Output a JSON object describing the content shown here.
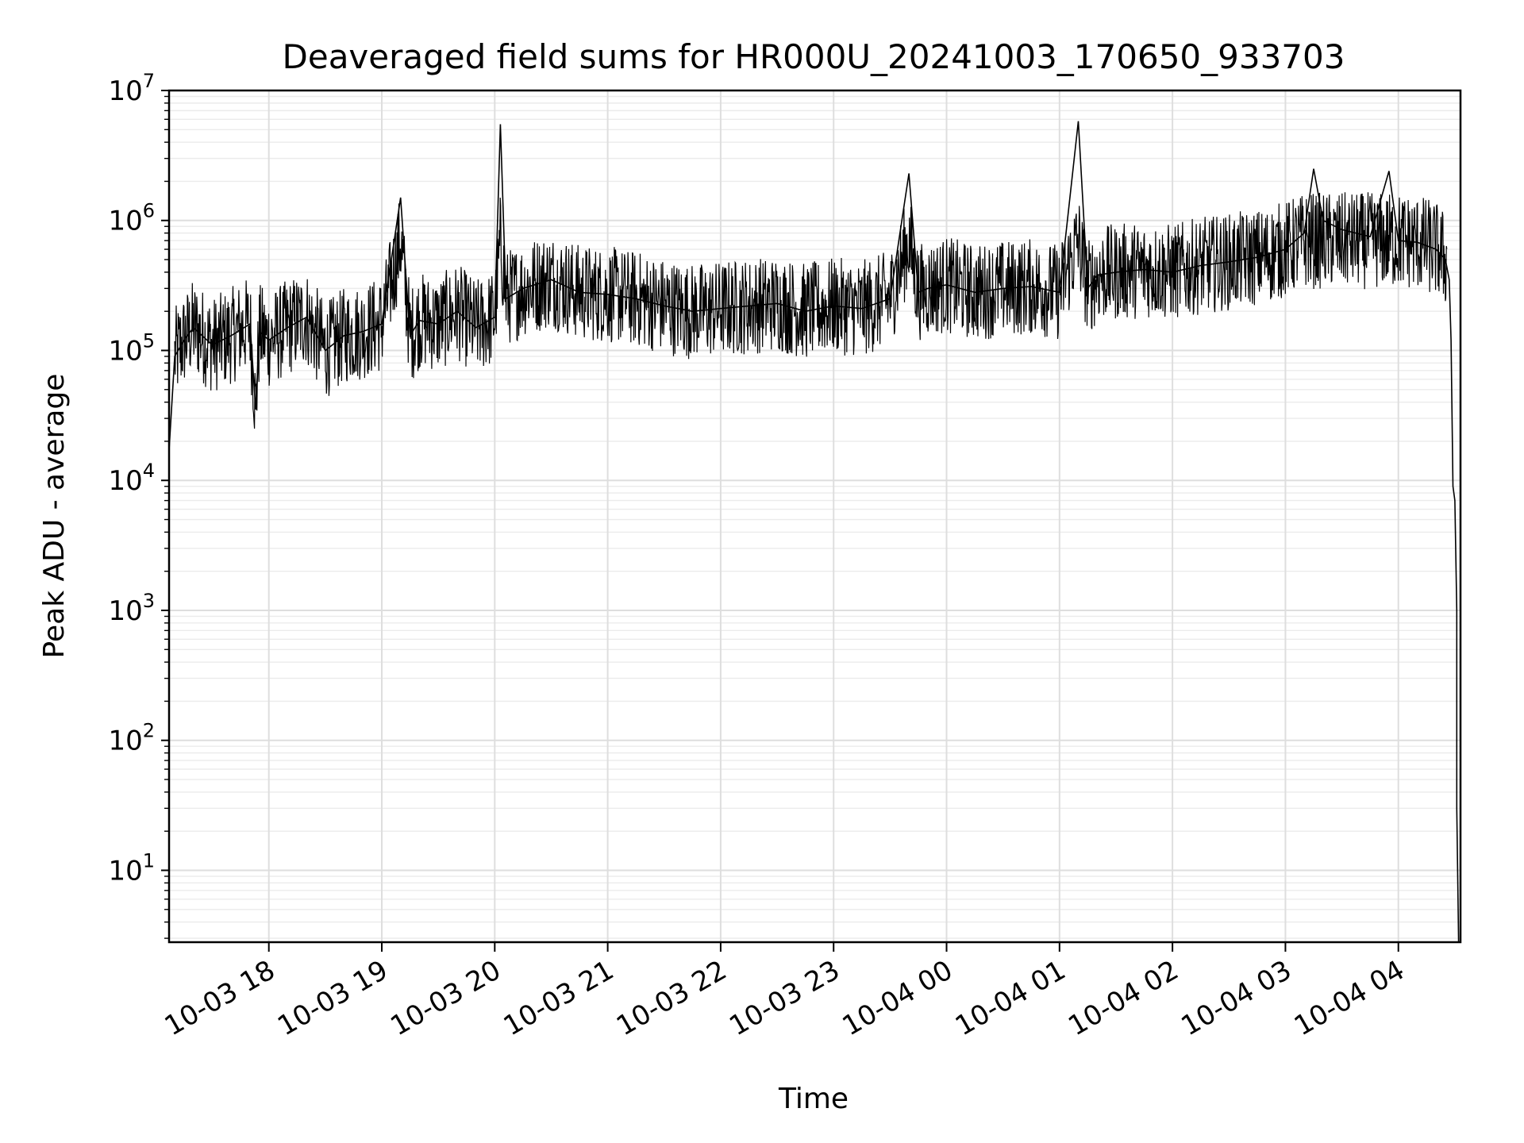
{
  "chart_data": {
    "type": "line",
    "title": "Deaveraged field sums for HR000U_20241003_170650_933703",
    "xlabel": "Time",
    "ylabel": "Peak ADU - average",
    "yscale": "log",
    "ylim": [
      2.8,
      10000000
    ],
    "xlim": [
      "2024-10-03 17:07",
      "2024-10-04 04:33"
    ],
    "grid": "on (major and minor)",
    "series_color": "#000000",
    "x_ticks": [
      "10-03 18",
      "10-03 19",
      "10-03 20",
      "10-03 21",
      "10-03 22",
      "10-03 23",
      "10-04 00",
      "10-04 01",
      "10-04 02",
      "10-04 03",
      "10-04 04"
    ],
    "y_ticks": [
      {
        "base": "10",
        "exp": "1"
      },
      {
        "base": "10",
        "exp": "2"
      },
      {
        "base": "10",
        "exp": "3"
      },
      {
        "base": "10",
        "exp": "4"
      },
      {
        "base": "10",
        "exp": "5"
      },
      {
        "base": "10",
        "exp": "6"
      },
      {
        "base": "10",
        "exp": "7"
      }
    ],
    "series": [
      {
        "color": "#000000",
        "x": [
          "2024-10-03 17:07",
          "2024-10-03 17:08",
          "2024-10-03 17:10",
          "2024-10-03 17:15",
          "2024-10-03 17:20",
          "2024-10-03 17:30",
          "2024-10-03 17:40",
          "2024-10-03 17:50",
          "2024-10-03 17:53",
          "2024-10-03 17:55",
          "2024-10-03 18:00",
          "2024-10-03 18:10",
          "2024-10-03 18:20",
          "2024-10-03 18:30",
          "2024-10-03 18:40",
          "2024-10-03 18:50",
          "2024-10-03 19:00",
          "2024-10-03 19:10",
          "2024-10-03 19:15",
          "2024-10-03 19:20",
          "2024-10-03 19:30",
          "2024-10-03 19:40",
          "2024-10-03 19:50",
          "2024-10-03 20:00",
          "2024-10-03 20:03",
          "2024-10-03 20:06",
          "2024-10-03 20:15",
          "2024-10-03 20:30",
          "2024-10-03 20:45",
          "2024-10-03 21:00",
          "2024-10-03 21:15",
          "2024-10-03 21:30",
          "2024-10-03 21:45",
          "2024-10-03 22:00",
          "2024-10-03 22:15",
          "2024-10-03 22:30",
          "2024-10-03 22:45",
          "2024-10-03 23:00",
          "2024-10-03 23:15",
          "2024-10-03 23:30",
          "2024-10-03 23:40",
          "2024-10-03 23:45",
          "2024-10-03 23:50",
          "2024-10-04 00:00",
          "2024-10-04 00:15",
          "2024-10-04 00:30",
          "2024-10-04 00:45",
          "2024-10-04 01:00",
          "2024-10-04 01:10",
          "2024-10-04 01:15",
          "2024-10-04 01:20",
          "2024-10-04 01:30",
          "2024-10-04 01:45",
          "2024-10-04 02:00",
          "2024-10-04 02:15",
          "2024-10-04 02:30",
          "2024-10-04 02:45",
          "2024-10-04 03:00",
          "2024-10-04 03:10",
          "2024-10-04 03:15",
          "2024-10-04 03:20",
          "2024-10-04 03:30",
          "2024-10-04 03:45",
          "2024-10-04 03:55",
          "2024-10-04 04:00",
          "2024-10-04 04:10",
          "2024-10-04 04:20",
          "2024-10-04 04:25",
          "2024-10-04 04:27",
          "2024-10-04 04:28",
          "2024-10-04 04:29",
          "2024-10-04 04:30",
          "2024-10-04 04:31",
          "2024-10-04 04:31",
          "2024-10-04 04:32"
        ],
        "y": [
          17000,
          30000,
          90000,
          120000,
          150000,
          110000,
          130000,
          160000,
          35000,
          140000,
          120000,
          150000,
          180000,
          100000,
          130000,
          140000,
          160000,
          1500000,
          130000,
          170000,
          160000,
          200000,
          150000,
          180000,
          5500000,
          250000,
          300000,
          350000,
          280000,
          270000,
          250000,
          220000,
          200000,
          210000,
          220000,
          230000,
          200000,
          220000,
          210000,
          250000,
          2300000,
          280000,
          300000,
          320000,
          280000,
          300000,
          310000,
          280000,
          5800000,
          300000,
          380000,
          400000,
          420000,
          400000,
          450000,
          480000,
          520000,
          600000,
          800000,
          2500000,
          1000000,
          850000,
          750000,
          2400000,
          700000,
          680000,
          600000,
          500000,
          350000,
          120000,
          9000,
          7000,
          1000,
          30,
          2.8
        ]
      }
    ]
  }
}
